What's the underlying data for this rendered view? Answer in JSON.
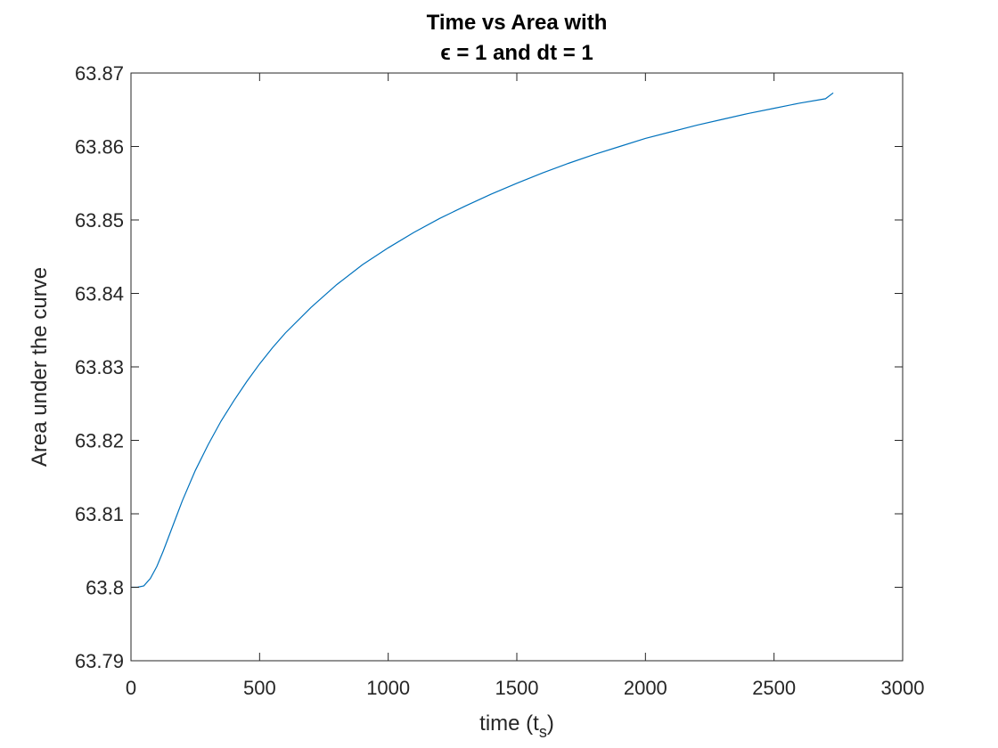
{
  "chart_data": {
    "type": "line",
    "title_line1": "Time vs Area with",
    "title_line2": "ϵ = 1 and dt = 1",
    "xlabel": "time (t",
    "xlabel_sub": "s",
    "xlabel_close": ")",
    "ylabel": "Area under the curve",
    "xlim": [
      0,
      3000
    ],
    "ylim": [
      63.79,
      63.87
    ],
    "xticks": [
      0,
      500,
      1000,
      1500,
      2000,
      2500,
      3000
    ],
    "xtick_labels": [
      "0",
      "500",
      "1000",
      "1500",
      "2000",
      "2500",
      "3000"
    ],
    "yticks": [
      63.79,
      63.8,
      63.81,
      63.82,
      63.83,
      63.84,
      63.85,
      63.86,
      63.87
    ],
    "ytick_labels": [
      "63.79",
      "63.8",
      "63.81",
      "63.82",
      "63.83",
      "63.84",
      "63.85",
      "63.86",
      "63.87"
    ],
    "grid": false,
    "line_color": "#0072BD",
    "series": [
      {
        "x": [
          0,
          25,
          50,
          75,
          100,
          125,
          150,
          175,
          200,
          250,
          300,
          350,
          400,
          450,
          500,
          550,
          600,
          700,
          800,
          900,
          1000,
          1100,
          1200,
          1300,
          1400,
          1500,
          1600,
          1700,
          1800,
          1900,
          2000,
          2100,
          2200,
          2300,
          2400,
          2500,
          2600,
          2700,
          2730
        ],
        "y": [
          63.8,
          63.8,
          63.8002,
          63.8012,
          63.8028,
          63.8049,
          63.8072,
          63.8095,
          63.8118,
          63.8159,
          63.8194,
          63.8226,
          63.8254,
          63.828,
          63.8304,
          63.8326,
          63.8346,
          63.8381,
          63.8412,
          63.8439,
          63.8462,
          63.8483,
          63.8502,
          63.8519,
          63.8535,
          63.855,
          63.8564,
          63.8577,
          63.8589,
          63.86,
          63.8611,
          63.862,
          63.8629,
          63.8637,
          63.8645,
          63.8652,
          63.8659,
          63.8665,
          63.8673
        ]
      }
    ]
  }
}
